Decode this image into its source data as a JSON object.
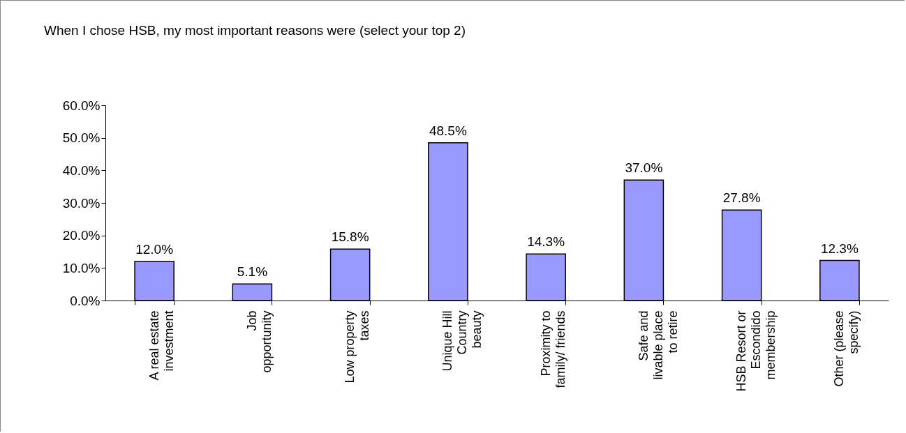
{
  "chart_data": {
    "type": "bar",
    "title": "When I chose HSB, my most important reasons were (select your top 2)",
    "categories": [
      "A real estate\ninvestment",
      "Job\nopportunity",
      "Low property\ntaxes",
      "Unique Hill\nCountry\nbeauty",
      "Proximity to\nfamily/ friends",
      "Safe and\nlivable place\nto retire",
      "HSB Resort or\nEscondido\nmembership",
      "Other (please\nspecify)"
    ],
    "values": [
      12.0,
      5.1,
      15.8,
      48.5,
      14.3,
      37.0,
      27.8,
      12.3
    ],
    "value_labels": [
      "12.0%",
      "5.1%",
      "15.8%",
      "48.5%",
      "14.3%",
      "37.0%",
      "27.8%",
      "12.3%"
    ],
    "color": "#9999ff",
    "ylim": [
      0,
      60
    ],
    "yticks": [
      {
        "value": 0,
        "label": "0.0%"
      },
      {
        "value": 10,
        "label": "10.0%"
      },
      {
        "value": 20,
        "label": "20.0%"
      },
      {
        "value": 30,
        "label": "30.0%"
      },
      {
        "value": 40,
        "label": "40.0%"
      },
      {
        "value": 50,
        "label": "50.0%"
      },
      {
        "value": 60,
        "label": "60.0%"
      }
    ],
    "grid": false
  }
}
